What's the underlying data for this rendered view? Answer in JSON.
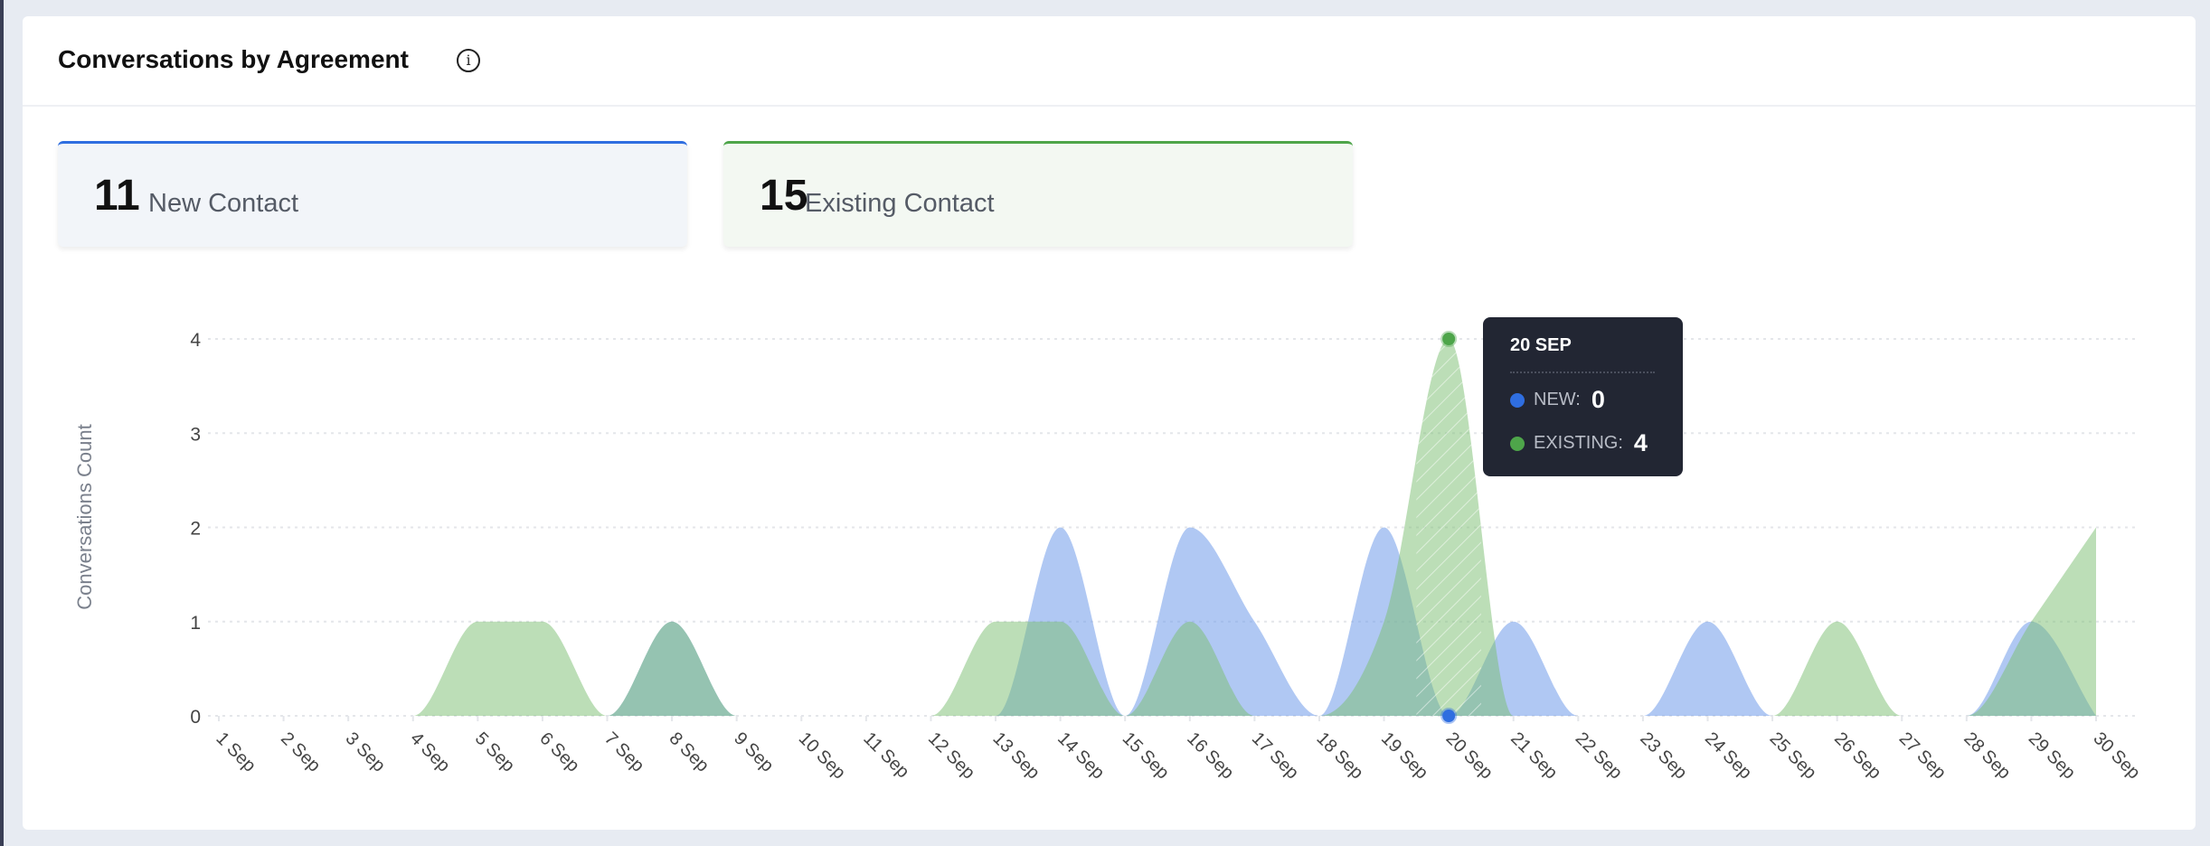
{
  "header": {
    "title": "Conversations by Agreement",
    "info_icon": "info-icon"
  },
  "stats": [
    {
      "value": "11",
      "label": "New Contact",
      "color": "#2f6ee0"
    },
    {
      "value": "15",
      "label": "Existing Contact",
      "color": "#4ea54a"
    }
  ],
  "tooltip": {
    "date": "20 SEP",
    "rows": [
      {
        "label": "NEW:",
        "value": "0",
        "color": "#2f6ee0"
      },
      {
        "label": "EXISTING:",
        "value": "4",
        "color": "#4ea54a"
      }
    ]
  },
  "chart_data": {
    "type": "area",
    "ylabel": "Conversations Count",
    "xlabel": "",
    "ylim": [
      0,
      4
    ],
    "yticks": [
      "0",
      "1",
      "2",
      "3",
      "4"
    ],
    "grid": true,
    "categories": [
      "1 Sep",
      "2 Sep",
      "3 Sep",
      "4 Sep",
      "5 Sep",
      "6 Sep",
      "7 Sep",
      "8 Sep",
      "9 Sep",
      "10 Sep",
      "11 Sep",
      "12 Sep",
      "13 Sep",
      "14 Sep",
      "15 Sep",
      "16 Sep",
      "17 Sep",
      "18 Sep",
      "19 Sep",
      "20 Sep",
      "21 Sep",
      "22 Sep",
      "23 Sep",
      "24 Sep",
      "25 Sep",
      "26 Sep",
      "27 Sep",
      "28 Sep",
      "29 Sep",
      "30 Sep"
    ],
    "series": [
      {
        "name": "New",
        "color": "#6f9be9",
        "values": [
          0,
          0,
          0,
          0,
          0,
          0,
          0,
          1,
          0,
          0,
          0,
          0,
          0,
          2,
          0,
          2,
          1,
          0,
          2,
          0,
          1,
          0,
          0,
          1,
          0,
          0,
          0,
          0,
          1,
          0
        ]
      },
      {
        "name": "Existing",
        "color": "#79bd70",
        "values": [
          0,
          0,
          0,
          0,
          1,
          1,
          0,
          1,
          0,
          0,
          0,
          0,
          1,
          1,
          0,
          1,
          0,
          0,
          1,
          4,
          0,
          0,
          0,
          0,
          0,
          1,
          0,
          0,
          1,
          2
        ]
      }
    ],
    "highlighted": "20 Sep"
  }
}
